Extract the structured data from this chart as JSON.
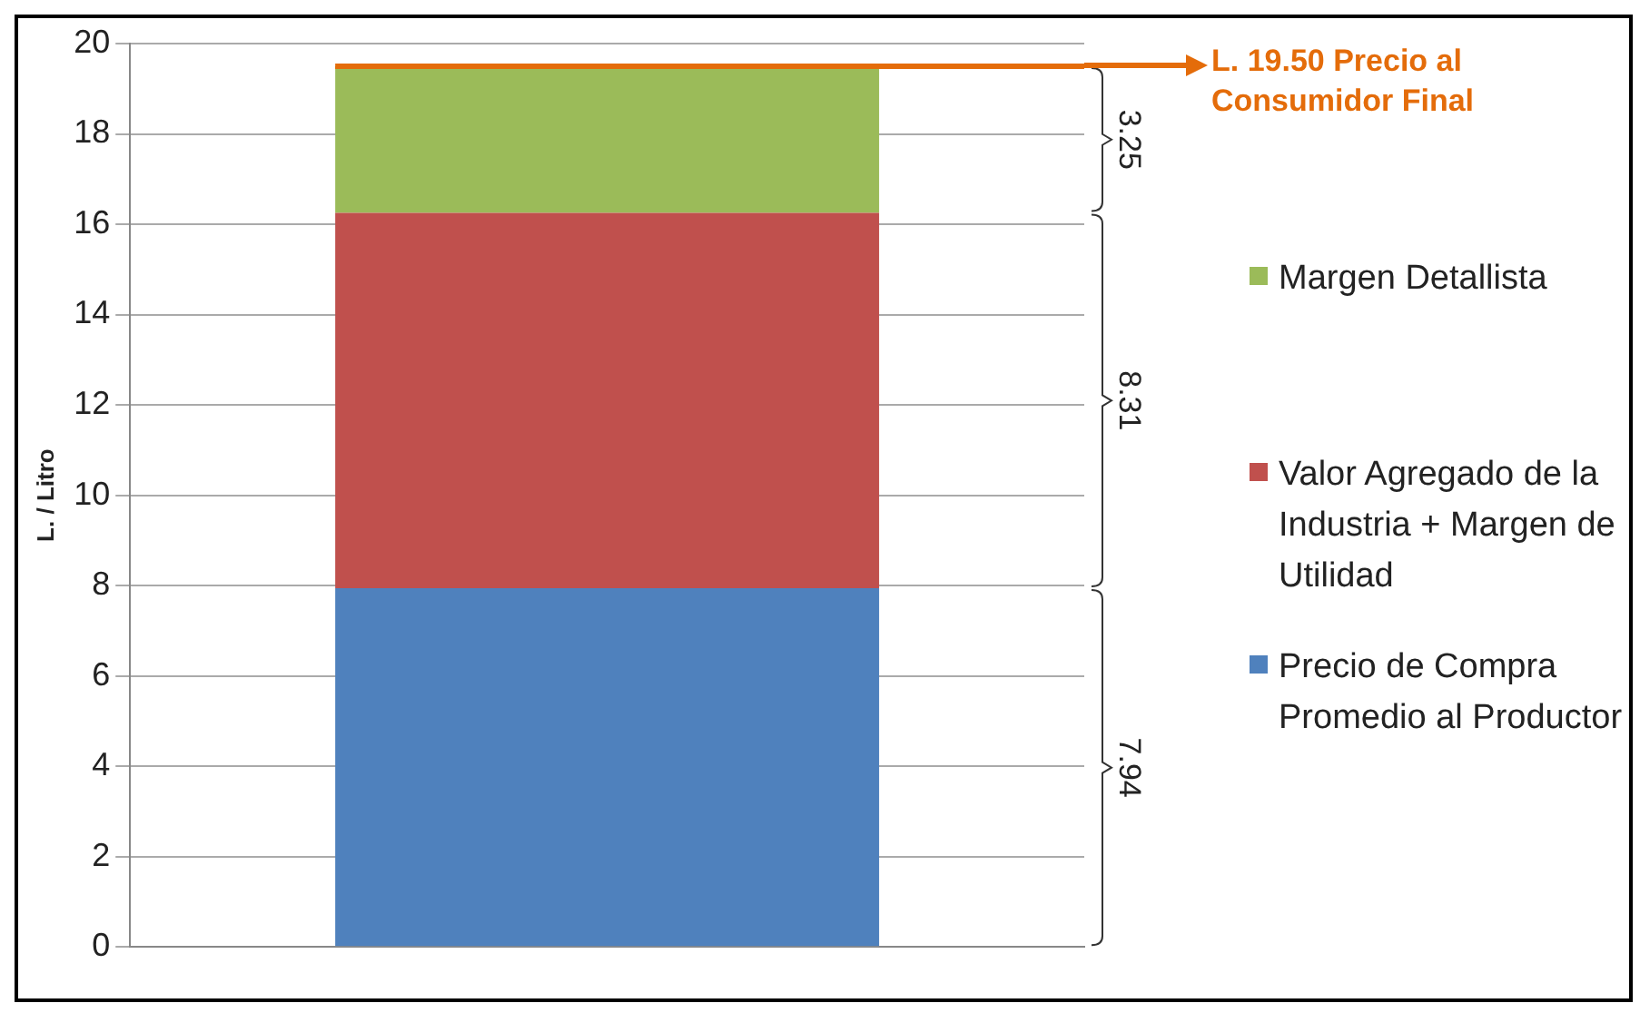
{
  "chart_data": {
    "type": "bar",
    "stacked": true,
    "ylabel": "L. / Litro",
    "categories": [
      null
    ],
    "series": [
      {
        "name": "Precio de Compra Promedio al Productor",
        "color": "#4f81bd",
        "values": [
          7.94
        ]
      },
      {
        "name": "Valor Agregado de la Industria + Margen de Utilidad",
        "color": "#c0504d",
        "values": [
          8.31
        ]
      },
      {
        "name": "Margen Detallista",
        "color": "#9bbb59",
        "values": [
          3.25
        ]
      }
    ],
    "annotations": [
      "7.94",
      "8.31",
      "3.25"
    ],
    "ylim": [
      0,
      20
    ],
    "yticks": [
      0,
      2,
      4,
      6,
      8,
      10,
      12,
      14,
      16,
      18,
      20
    ],
    "grid": "y",
    "legend": "right",
    "ref_lines": [
      {
        "axis": "y",
        "value": 19.5,
        "label": "L. 19.50 Precio al Consumidor Final",
        "color": "#e46c0a"
      }
    ]
  }
}
